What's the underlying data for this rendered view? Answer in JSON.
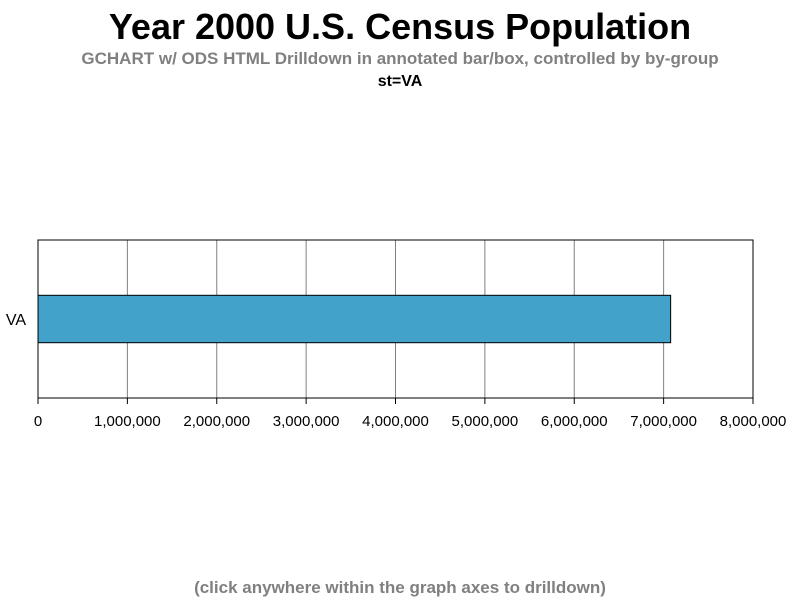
{
  "header": {
    "title": "Year 2000 U.S. Census Population",
    "subtitle": "GCHART w/ ODS HTML Drilldown in annotated bar/box, controlled by by-group",
    "by_group": "st=VA"
  },
  "footnote": "(click anywhere within the graph axes to drilldown)",
  "chart_data": {
    "type": "bar",
    "orientation": "horizontal",
    "categories": [
      "VA"
    ],
    "values": [
      7078515
    ],
    "xlim": [
      0,
      8000000
    ],
    "ticks": [
      0,
      1000000,
      2000000,
      3000000,
      4000000,
      5000000,
      6000000,
      7000000,
      8000000
    ],
    "tick_labels": [
      "0",
      "1,000,000",
      "2,000,000",
      "3,000,000",
      "4,000,000",
      "5,000,000",
      "6,000,000",
      "7,000,000",
      "8,000,000"
    ],
    "grid": true,
    "bar_color": "#42a2ca",
    "xlabel": "",
    "ylabel": ""
  }
}
